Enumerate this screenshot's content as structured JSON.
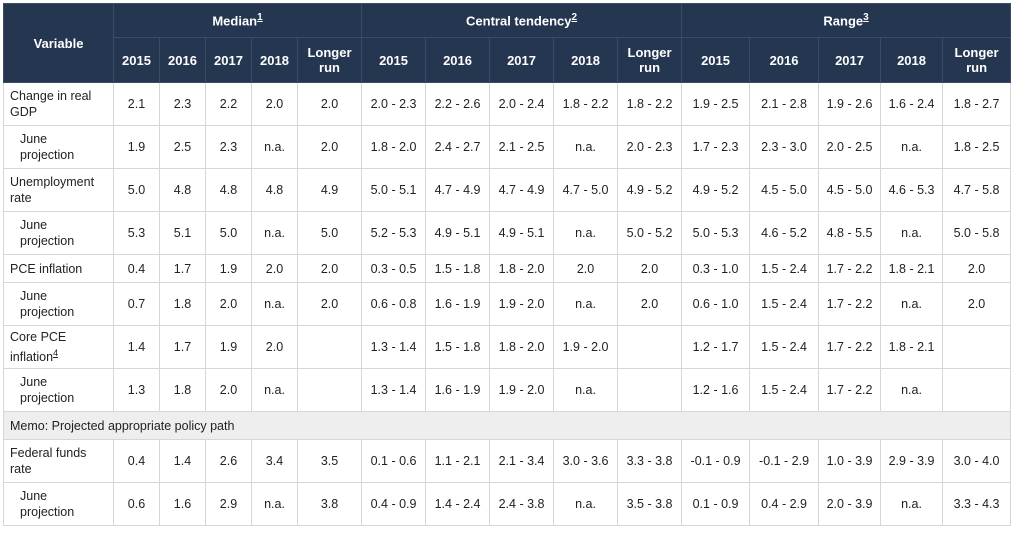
{
  "header": {
    "variable": "Variable",
    "groups": [
      {
        "label": "Median",
        "note": "1"
      },
      {
        "label": "Central tendency",
        "note": "2"
      },
      {
        "label": "Range",
        "note": "3"
      }
    ],
    "years": [
      "2015",
      "2016",
      "2017",
      "2018",
      "Longer run"
    ],
    "years_display": [
      [
        "2015"
      ],
      [
        "2016"
      ],
      [
        "2017"
      ],
      [
        "2018"
      ],
      [
        "Longer",
        "run"
      ]
    ]
  },
  "rows": [
    {
      "label": [
        "Change in real",
        "GDP"
      ],
      "note": "",
      "sub": false,
      "values": [
        "2.1",
        "2.3",
        "2.2",
        "2.0",
        "2.0",
        "2.0 - 2.3",
        "2.2 - 2.6",
        "2.0 - 2.4",
        "1.8 - 2.2",
        "1.8 - 2.2",
        "1.9 - 2.5",
        "2.1 - 2.8",
        "1.9 - 2.6",
        "1.6 - 2.4",
        "1.8 - 2.7"
      ]
    },
    {
      "label": [
        "June",
        "projection"
      ],
      "note": "",
      "sub": true,
      "values": [
        "1.9",
        "2.5",
        "2.3",
        "n.a.",
        "2.0",
        "1.8 - 2.0",
        "2.4 - 2.7",
        "2.1 - 2.5",
        "n.a.",
        "2.0 - 2.3",
        "1.7 - 2.3",
        "2.3 - 3.0",
        "2.0 - 2.5",
        "n.a.",
        "1.8 - 2.5"
      ]
    },
    {
      "label": [
        "Unemployment",
        "rate"
      ],
      "note": "",
      "sub": false,
      "values": [
        "5.0",
        "4.8",
        "4.8",
        "4.8",
        "4.9",
        "5.0 - 5.1",
        "4.7 - 4.9",
        "4.7 - 4.9",
        "4.7 - 5.0",
        "4.9 - 5.2",
        "4.9 - 5.2",
        "4.5 - 5.0",
        "4.5 - 5.0",
        "4.6 - 5.3",
        "4.7 - 5.8"
      ]
    },
    {
      "label": [
        "June",
        "projection"
      ],
      "note": "",
      "sub": true,
      "values": [
        "5.3",
        "5.1",
        "5.0",
        "n.a.",
        "5.0",
        "5.2 - 5.3",
        "4.9 - 5.1",
        "4.9 - 5.1",
        "n.a.",
        "5.0 - 5.2",
        "5.0 - 5.3",
        "4.6 - 5.2",
        "4.8 - 5.5",
        "n.a.",
        "5.0 - 5.8"
      ]
    },
    {
      "label": [
        "PCE inflation"
      ],
      "note": "",
      "sub": false,
      "short": true,
      "values": [
        "0.4",
        "1.7",
        "1.9",
        "2.0",
        "2.0",
        "0.3 - 0.5",
        "1.5 - 1.8",
        "1.8 - 2.0",
        "2.0",
        "2.0",
        "0.3 - 1.0",
        "1.5 - 2.4",
        "1.7 - 2.2",
        "1.8 - 2.1",
        "2.0"
      ]
    },
    {
      "label": [
        "June",
        "projection"
      ],
      "note": "",
      "sub": true,
      "values": [
        "0.7",
        "1.8",
        "2.0",
        "n.a.",
        "2.0",
        "0.6 - 0.8",
        "1.6 - 1.9",
        "1.9 - 2.0",
        "n.a.",
        "2.0",
        "0.6 - 1.0",
        "1.5 - 2.4",
        "1.7 - 2.2",
        "n.a.",
        "2.0"
      ]
    },
    {
      "label": [
        "Core PCE",
        "inflation"
      ],
      "note": "4",
      "sub": false,
      "values": [
        "1.4",
        "1.7",
        "1.9",
        "2.0",
        "",
        "1.3 - 1.4",
        "1.5 - 1.8",
        "1.8 - 2.0",
        "1.9 - 2.0",
        "",
        "1.2 - 1.7",
        "1.5 - 2.4",
        "1.7 - 2.2",
        "1.8 - 2.1",
        ""
      ]
    },
    {
      "label": [
        "June",
        "projection"
      ],
      "note": "",
      "sub": true,
      "values": [
        "1.3",
        "1.8",
        "2.0",
        "n.a.",
        "",
        "1.3 - 1.4",
        "1.6 - 1.9",
        "1.9 - 2.0",
        "n.a.",
        "",
        "1.2 - 1.6",
        "1.5 - 2.4",
        "1.7 - 2.2",
        "n.a.",
        ""
      ]
    }
  ],
  "memo": "Memo: Projected appropriate policy path",
  "policy_rows": [
    {
      "label": [
        "Federal funds",
        "rate"
      ],
      "note": "",
      "sub": false,
      "values": [
        "0.4",
        "1.4",
        "2.6",
        "3.4",
        "3.5",
        "0.1 - 0.6",
        "1.1 - 2.1",
        "2.1 - 3.4",
        "3.0 - 3.6",
        "3.3 - 3.8",
        "-0.1 - 0.9",
        "-0.1 - 2.9",
        "1.0 - 3.9",
        "2.9 - 3.9",
        "3.0 - 4.0"
      ]
    },
    {
      "label": [
        "June",
        "projection"
      ],
      "note": "",
      "sub": true,
      "values": [
        "0.6",
        "1.6",
        "2.9",
        "n.a.",
        "3.8",
        "0.4 - 0.9",
        "1.4 - 2.4",
        "2.4 - 3.8",
        "n.a.",
        "3.5 - 3.8",
        "0.1 - 0.9",
        "0.4 - 2.9",
        "2.0 - 3.9",
        "n.a.",
        "3.3 - 4.3"
      ]
    }
  ]
}
